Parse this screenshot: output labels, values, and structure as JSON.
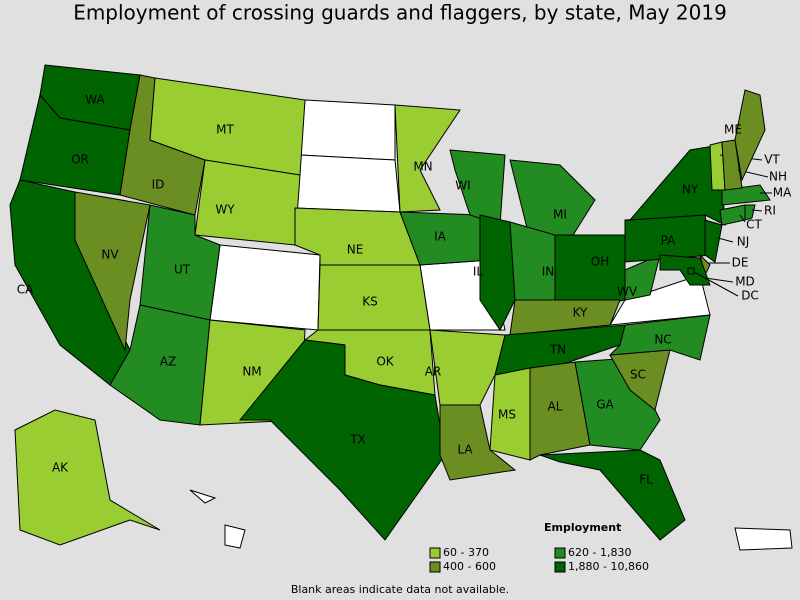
{
  "title": "Employment of crossing guards and flaggers, by state, May 2019",
  "footnote": "Blank areas indicate data not available.",
  "legend": {
    "title": "Employment",
    "items": [
      {
        "label": "60 - 370",
        "color": "#9acd32"
      },
      {
        "label": "400 - 600",
        "color": "#6b8e23"
      },
      {
        "label": "620 - 1,830",
        "color": "#228b22"
      },
      {
        "label": "1,880 - 10,860",
        "color": "#006400"
      }
    ]
  },
  "states": [
    {
      "abbr": "WA",
      "color": "#006400"
    },
    {
      "abbr": "OR",
      "color": "#006400"
    },
    {
      "abbr": "CA",
      "color": "#006400"
    },
    {
      "abbr": "NV",
      "color": "#6b8e23"
    },
    {
      "abbr": "ID",
      "color": "#6b8e23"
    },
    {
      "abbr": "MT",
      "color": "#9acd32"
    },
    {
      "abbr": "WY",
      "color": "#9acd32"
    },
    {
      "abbr": "UT",
      "color": "#228b22"
    },
    {
      "abbr": "AZ",
      "color": "#228b22"
    },
    {
      "abbr": "NM",
      "color": "#9acd32"
    },
    {
      "abbr": "NE",
      "color": "#9acd32"
    },
    {
      "abbr": "KS",
      "color": "#9acd32"
    },
    {
      "abbr": "OK",
      "color": "#9acd32"
    },
    {
      "abbr": "TX",
      "color": "#006400"
    },
    {
      "abbr": "MN",
      "color": "#9acd32"
    },
    {
      "abbr": "IA",
      "color": "#228b22"
    },
    {
      "abbr": "WI",
      "color": "#228b22"
    },
    {
      "abbr": "IL",
      "color": "#006400"
    },
    {
      "abbr": "MI",
      "color": "#228b22"
    },
    {
      "abbr": "IN",
      "color": "#228b22"
    },
    {
      "abbr": "OH",
      "color": "#006400"
    },
    {
      "abbr": "KY",
      "color": "#6b8e23"
    },
    {
      "abbr": "TN",
      "color": "#006400"
    },
    {
      "abbr": "AR",
      "color": "#9acd32"
    },
    {
      "abbr": "LA",
      "color": "#6b8e23"
    },
    {
      "abbr": "MS",
      "color": "#9acd32"
    },
    {
      "abbr": "AL",
      "color": "#6b8e23"
    },
    {
      "abbr": "GA",
      "color": "#228b22"
    },
    {
      "abbr": "FL",
      "color": "#006400"
    },
    {
      "abbr": "SC",
      "color": "#6b8e23"
    },
    {
      "abbr": "NC",
      "color": "#228b22"
    },
    {
      "abbr": "WV",
      "color": "#228b22"
    },
    {
      "abbr": "PA",
      "color": "#006400"
    },
    {
      "abbr": "NY",
      "color": "#006400"
    },
    {
      "abbr": "NJ",
      "color": "#006400"
    },
    {
      "abbr": "DE",
      "color": "#6b8e23"
    },
    {
      "abbr": "MD",
      "color": "#006400"
    },
    {
      "abbr": "DC",
      "color": "#006400"
    },
    {
      "abbr": "CT",
      "color": "#228b22"
    },
    {
      "abbr": "RI",
      "color": "#228b22"
    },
    {
      "abbr": "MA",
      "color": "#228b22"
    },
    {
      "abbr": "VT",
      "color": "#9acd32"
    },
    {
      "abbr": "NH",
      "color": "#6b8e23"
    },
    {
      "abbr": "ME",
      "color": "#6b8e23"
    },
    {
      "abbr": "AK",
      "color": "#9acd32"
    }
  ]
}
